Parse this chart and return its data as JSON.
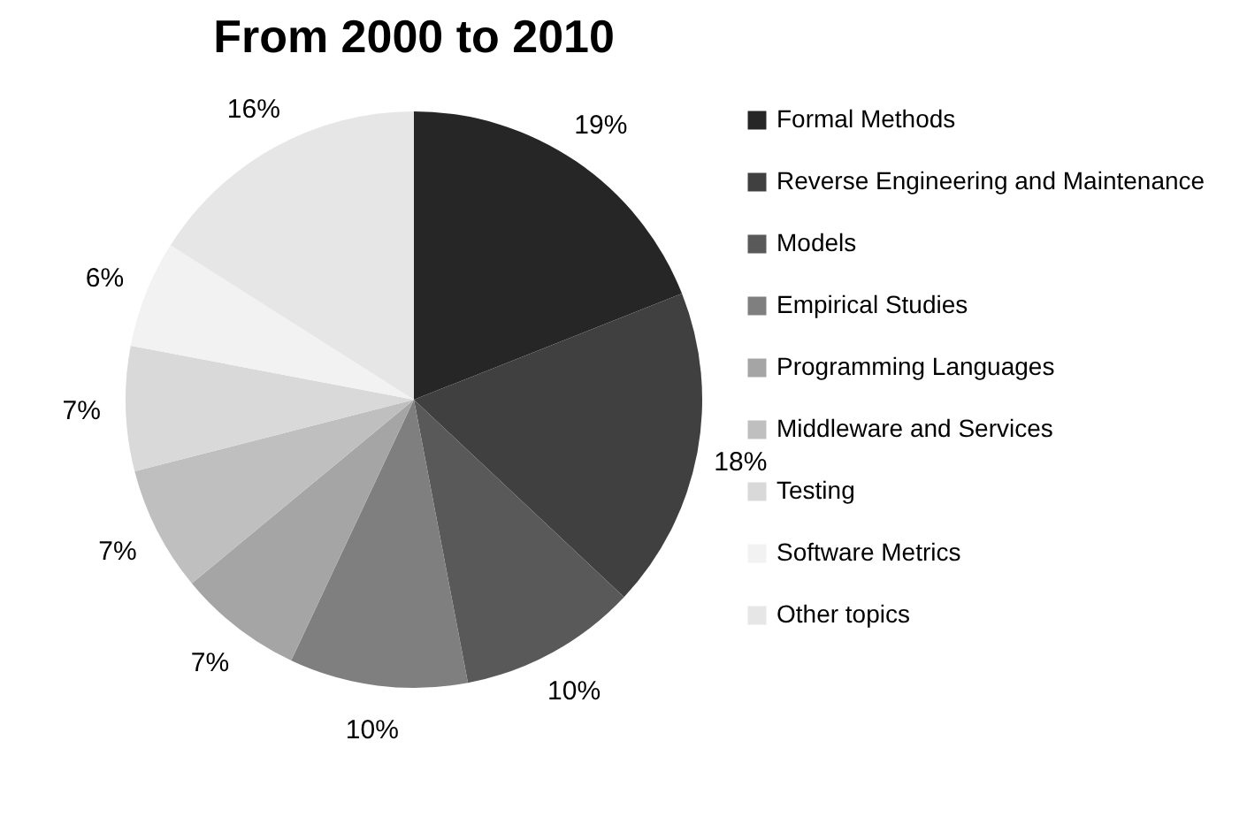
{
  "chart_data": {
    "type": "pie",
    "title": "From 2000 to 2010",
    "categories": [
      "Formal Methods",
      "Reverse Engineering and Maintenance",
      "Models",
      "Empirical Studies",
      "Programming Languages",
      "Middleware and Services",
      "Testing",
      "Software Metrics",
      "Other topics"
    ],
    "values": [
      19,
      18,
      10,
      10,
      7,
      7,
      7,
      6,
      16
    ],
    "value_labels": [
      "19%",
      "18%",
      "10%",
      "10%",
      "7%",
      "7%",
      "7%",
      "6%",
      "16%"
    ],
    "colors": [
      "#262626",
      "#404040",
      "#595959",
      "#7f7f7f",
      "#a5a5a5",
      "#bfbfbf",
      "#d9d9d9",
      "#f2f2f2",
      "#e6e6e6"
    ],
    "legend": "right"
  }
}
